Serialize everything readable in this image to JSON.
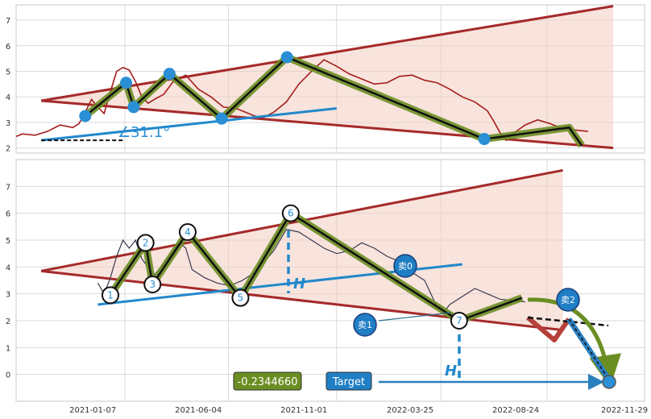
{
  "colors": {
    "background": "#ffffff",
    "panel_border": "#c8c8c8",
    "grid": "#d9d9d9",
    "price_top": "#a51c1c",
    "price_bottom": "#39394f",
    "wedge_line": "#a52a2a",
    "wedge_fill": "#f3cdc0",
    "support_line": "#2288cc",
    "zigzag_outer": "#6b8e23",
    "zigzag_inner": "#111111",
    "pivot_blue": "#2a8fd4",
    "sell_circle": "#1f7ec4",
    "projection_green": "#6b8e23",
    "projection_red": "#b5403a",
    "target_arrow": "#2a7fbf"
  },
  "chart_data": [
    {
      "type": "line",
      "panel": "top",
      "ylim": [
        1.8,
        7.6
      ],
      "y_ticks": [
        2,
        3,
        4,
        5,
        6,
        7
      ],
      "series": [
        {
          "role": "price",
          "points": [
            [
              0.0,
              2.45
            ],
            [
              0.01,
              2.55
            ],
            [
              0.03,
              2.5
            ],
            [
              0.05,
              2.65
            ],
            [
              0.07,
              2.9
            ],
            [
              0.09,
              2.8
            ],
            [
              0.1,
              2.95
            ],
            [
              0.11,
              3.4
            ],
            [
              0.12,
              3.9
            ],
            [
              0.13,
              3.6
            ],
            [
              0.14,
              3.35
            ],
            [
              0.15,
              4.2
            ],
            [
              0.16,
              5.0
            ],
            [
              0.17,
              5.15
            ],
            [
              0.18,
              5.05
            ],
            [
              0.19,
              4.6
            ],
            [
              0.2,
              4.0
            ],
            [
              0.21,
              3.75
            ],
            [
              0.22,
              3.9
            ],
            [
              0.235,
              4.1
            ],
            [
              0.25,
              4.6
            ],
            [
              0.27,
              4.85
            ],
            [
              0.29,
              4.3
            ],
            [
              0.31,
              4.0
            ],
            [
              0.33,
              3.6
            ],
            [
              0.35,
              3.55
            ],
            [
              0.37,
              3.35
            ],
            [
              0.39,
              3.15
            ],
            [
              0.41,
              3.4
            ],
            [
              0.43,
              3.8
            ],
            [
              0.45,
              4.5
            ],
            [
              0.47,
              5.0
            ],
            [
              0.49,
              5.45
            ],
            [
              0.51,
              5.2
            ],
            [
              0.53,
              4.9
            ],
            [
              0.55,
              4.7
            ],
            [
              0.57,
              4.5
            ],
            [
              0.59,
              4.55
            ],
            [
              0.61,
              4.8
            ],
            [
              0.63,
              4.85
            ],
            [
              0.65,
              4.65
            ],
            [
              0.67,
              4.55
            ],
            [
              0.69,
              4.3
            ],
            [
              0.71,
              4.0
            ],
            [
              0.73,
              3.8
            ],
            [
              0.75,
              3.45
            ],
            [
              0.76,
              3.05
            ],
            [
              0.77,
              2.6
            ],
            [
              0.78,
              2.3
            ],
            [
              0.79,
              2.55
            ],
            [
              0.81,
              2.9
            ],
            [
              0.83,
              3.1
            ],
            [
              0.85,
              2.95
            ],
            [
              0.87,
              2.75
            ],
            [
              0.89,
              2.7
            ],
            [
              0.91,
              2.65
            ]
          ]
        }
      ],
      "pivots": [
        {
          "x": 0.11,
          "y": 3.25
        },
        {
          "x": 0.175,
          "y": 4.55
        },
        {
          "x": 0.187,
          "y": 3.6
        },
        {
          "x": 0.244,
          "y": 4.9
        },
        {
          "x": 0.327,
          "y": 3.15
        },
        {
          "x": 0.431,
          "y": 5.55
        },
        {
          "x": 0.745,
          "y": 2.35
        }
      ],
      "zigzag": [
        [
          0.11,
          3.25
        ],
        [
          0.175,
          4.55
        ],
        [
          0.187,
          3.6
        ],
        [
          0.244,
          4.9
        ],
        [
          0.327,
          3.15
        ],
        [
          0.431,
          5.55
        ],
        [
          0.745,
          2.35
        ],
        [
          0.88,
          2.8
        ],
        [
          0.9,
          2.1
        ]
      ],
      "wedge_upper": [
        [
          0.04,
          3.85
        ],
        [
          0.95,
          7.55
        ]
      ],
      "wedge_lower": [
        [
          0.04,
          3.85
        ],
        [
          0.95,
          2.0
        ]
      ],
      "support_line": [
        [
          0.04,
          2.3
        ],
        [
          0.51,
          3.55
        ]
      ],
      "baseline": [
        [
          0.04,
          2.3
        ],
        [
          0.17,
          2.3
        ]
      ],
      "angle_label": "∠31.1°"
    },
    {
      "type": "line",
      "panel": "bottom",
      "ylim": [
        -1.0,
        8.0
      ],
      "y_ticks": [
        0,
        1,
        2,
        3,
        4,
        5,
        6,
        7
      ],
      "x_tick_labels": [
        "2021-01-07",
        "2021-06-04",
        "2021-11-01",
        "2022-03-25",
        "2022-08-24",
        "2022-11-29"
      ],
      "series": [
        {
          "role": "price",
          "points": [
            [
              0.13,
              3.4
            ],
            [
              0.14,
              3.0
            ],
            [
              0.15,
              3.6
            ],
            [
              0.16,
              4.4
            ],
            [
              0.17,
              5.0
            ],
            [
              0.18,
              4.7
            ],
            [
              0.19,
              5.0
            ],
            [
              0.2,
              4.3
            ],
            [
              0.21,
              4.0
            ],
            [
              0.22,
              3.7
            ],
            [
              0.24,
              4.3
            ],
            [
              0.26,
              4.9
            ],
            [
              0.27,
              4.7
            ],
            [
              0.28,
              3.9
            ],
            [
              0.3,
              3.6
            ],
            [
              0.32,
              3.4
            ],
            [
              0.34,
              3.3
            ],
            [
              0.36,
              3.5
            ],
            [
              0.38,
              3.8
            ],
            [
              0.41,
              4.6
            ],
            [
              0.43,
              5.4
            ],
            [
              0.45,
              5.3
            ],
            [
              0.47,
              5.0
            ],
            [
              0.49,
              4.7
            ],
            [
              0.51,
              4.5
            ],
            [
              0.53,
              4.6
            ],
            [
              0.55,
              4.9
            ],
            [
              0.57,
              4.7
            ],
            [
              0.59,
              4.4
            ],
            [
              0.61,
              4.2
            ],
            [
              0.63,
              3.8
            ],
            [
              0.65,
              3.5
            ],
            [
              0.66,
              3.0
            ],
            [
              0.67,
              2.5
            ],
            [
              0.68,
              2.3
            ],
            [
              0.69,
              2.6
            ],
            [
              0.71,
              2.9
            ],
            [
              0.73,
              3.2
            ],
            [
              0.75,
              3.0
            ],
            [
              0.77,
              2.8
            ],
            [
              0.79,
              2.75
            ],
            [
              0.81,
              2.7
            ]
          ]
        }
      ],
      "pivots": [
        {
          "label": "1",
          "x": 0.15,
          "y": 2.95
        },
        {
          "label": "2",
          "x": 0.206,
          "y": 4.9
        },
        {
          "label": "3",
          "x": 0.217,
          "y": 3.35
        },
        {
          "label": "4",
          "x": 0.273,
          "y": 5.3
        },
        {
          "label": "5",
          "x": 0.357,
          "y": 2.85
        },
        {
          "label": "6",
          "x": 0.437,
          "y": 6.0
        },
        {
          "label": "7",
          "x": 0.705,
          "y": 2.0
        }
      ],
      "zigzag": [
        [
          0.15,
          2.95
        ],
        [
          0.206,
          4.9
        ],
        [
          0.217,
          3.35
        ],
        [
          0.273,
          5.3
        ],
        [
          0.357,
          2.85
        ],
        [
          0.437,
          6.0
        ],
        [
          0.705,
          2.0
        ],
        [
          0.805,
          2.85
        ]
      ],
      "wedge_upper": [
        [
          0.04,
          3.85
        ],
        [
          0.87,
          7.6
        ]
      ],
      "wedge_lower": [
        [
          0.04,
          3.85
        ],
        [
          0.87,
          1.65
        ]
      ],
      "support_line": [
        [
          0.13,
          2.6
        ],
        [
          0.71,
          4.1
        ]
      ],
      "value_box": "-0.2344660",
      "target_label": "Target",
      "height_label": "H",
      "sell_labels": [
        "卖0",
        "卖1",
        "卖2"
      ]
    }
  ]
}
